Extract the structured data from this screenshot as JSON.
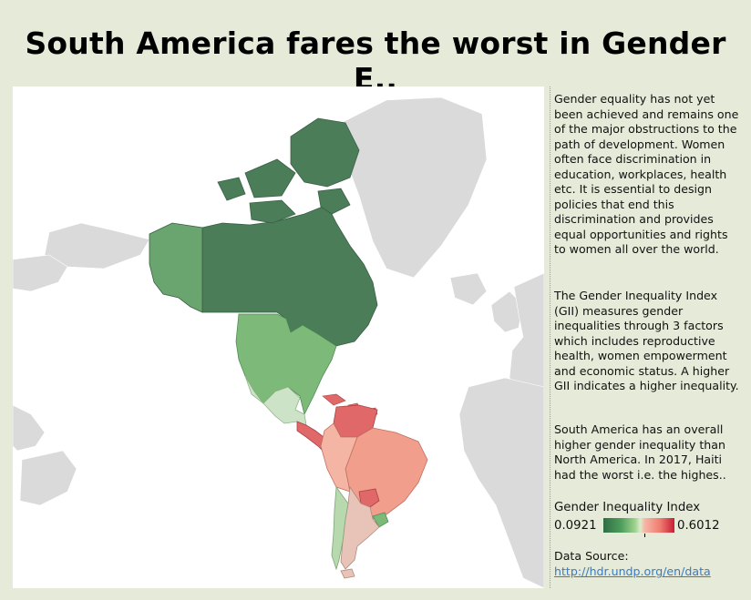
{
  "title": "South America fares the worst in Gender E..",
  "paragraphs": [
    "Gender equality has not yet been achieved and remains one of the major obstructions to the path of development. Women often face discrimination in education, workplaces, health etc. It is essential to design policies that end this discrimination and provides equal opportunities and rights to women all over the world.",
    "The Gender Inequality Index (GII) measures gender inequalities through 3 factors which includes reproductive health, women empowerment and economic status. A higher GII indicates a higher inequality.",
    "South America has an overall higher gender inequality than North America. In 2017, Haiti had the worst i.e. the highes.."
  ],
  "legend": {
    "title": "Gender Inequality Index",
    "min": "0.0921",
    "max": "0.6012",
    "colors": {
      "low": "#2e6e45",
      "mid": "#dceccd",
      "high": "#c81d37"
    }
  },
  "source": {
    "label": "Data Source:",
    "link": "http://hdr.undp.org/en/data"
  },
  "map": {
    "colors": {
      "canada": "#4a7d58",
      "greenland": "#cfcfcf",
      "alaska": "#6aa56f",
      "usa": "#7dba79",
      "mexico": "#cde3c7",
      "central": "#e06868",
      "brazil": "#f19e8c",
      "argentina": "#e8c4b8",
      "chile": "#b8d8ad",
      "uruguay": "#7dba79",
      "background_land": "#dadada"
    }
  }
}
